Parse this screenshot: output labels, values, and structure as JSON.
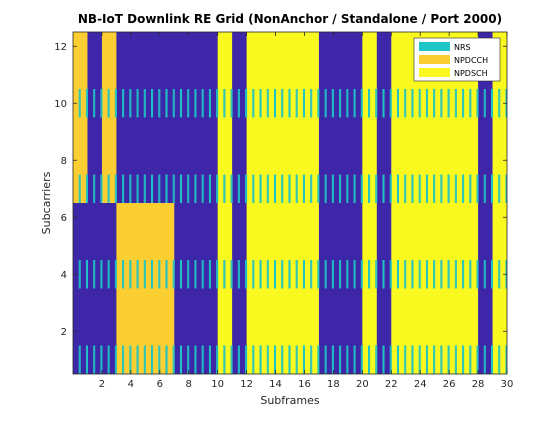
{
  "chart_data": {
    "type": "heatmap",
    "title": "NB-IoT Downlink RE Grid (NonAnchor / Standalone / Port 2000)",
    "xlabel": "Subframes",
    "ylabel": "Subcarriers",
    "xlim": [
      0,
      30
    ],
    "ylim": [
      0.5,
      12.5
    ],
    "xticks": [
      2,
      4,
      6,
      8,
      10,
      12,
      14,
      16,
      18,
      20,
      22,
      24,
      26,
      28,
      30
    ],
    "yticks": [
      2,
      4,
      6,
      8,
      10,
      12
    ],
    "background": {
      "name": "Empty",
      "color": "#3e26a8"
    },
    "legend": {
      "position": "top-right",
      "items": [
        {
          "label": "NRS",
          "color": "#1fc4c4"
        },
        {
          "label": "NPDCCH",
          "color": "#fbcf31"
        },
        {
          "label": "NPDSCH",
          "color": "#f9f920"
        }
      ]
    },
    "regions": [
      {
        "channel": "NPDCCH",
        "subframes": [
          0,
          1
        ],
        "subcarriers": [
          7,
          12
        ]
      },
      {
        "channel": "NPDCCH",
        "subframes": [
          2,
          3
        ],
        "subcarriers": [
          7,
          12
        ]
      },
      {
        "channel": "NPDCCH",
        "subframes": [
          3,
          7
        ],
        "subcarriers": [
          1,
          6
        ]
      },
      {
        "channel": "NPDSCH",
        "subframes": [
          10,
          11
        ],
        "subcarriers": [
          1,
          12
        ]
      },
      {
        "channel": "NPDSCH",
        "subframes": [
          12,
          17
        ],
        "subcarriers": [
          1,
          12
        ]
      },
      {
        "channel": "NPDSCH",
        "subframes": [
          20,
          21
        ],
        "subcarriers": [
          1,
          12
        ]
      },
      {
        "channel": "NPDSCH",
        "subframes": [
          22,
          28
        ],
        "subcarriers": [
          1,
          12
        ]
      },
      {
        "channel": "NPDSCH",
        "subframes": [
          29,
          30
        ],
        "subcarriers": [
          1,
          12
        ]
      }
    ],
    "nrs": {
      "subcarriers": [
        1,
        4,
        7,
        10
      ],
      "subframes": [
        0,
        1,
        2,
        3,
        4,
        5,
        6,
        7,
        8,
        9,
        10,
        11,
        12,
        13,
        14,
        15,
        16,
        17,
        18,
        19,
        20,
        21,
        22,
        23,
        24,
        25,
        26,
        27,
        28,
        29
      ],
      "symbol_offsets": [
        0.3929,
        0.4643,
        0.8929,
        0.9643
      ]
    }
  }
}
